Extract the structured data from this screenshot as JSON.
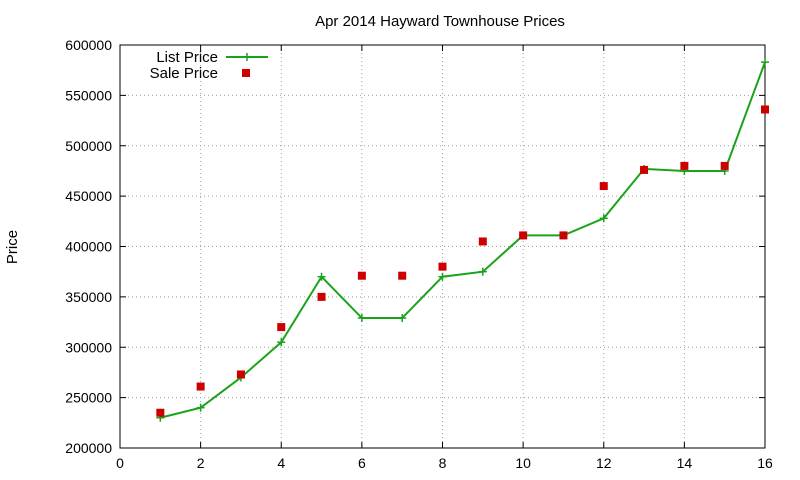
{
  "chart_data": {
    "type": "line",
    "title": "Apr 2014 Hayward Townhouse Prices",
    "xlabel": "",
    "ylabel": "Price",
    "xlim": [
      0,
      16
    ],
    "ylim": [
      200000,
      600000
    ],
    "xticks": [
      0,
      2,
      4,
      6,
      8,
      10,
      12,
      14,
      16
    ],
    "yticks": [
      200000,
      250000,
      300000,
      350000,
      400000,
      450000,
      500000,
      550000,
      600000
    ],
    "grid": true,
    "legend_position": "top-left",
    "series": [
      {
        "name": "List Price",
        "style": "line-with-plus-markers",
        "color": "#1aa31a",
        "x": [
          1,
          2,
          3,
          4,
          5,
          6,
          7,
          8,
          9,
          10,
          11,
          12,
          13,
          14,
          15,
          16
        ],
        "y": [
          230000,
          240000,
          270000,
          305000,
          370000,
          329000,
          329000,
          370000,
          375000,
          411000,
          411000,
          428000,
          477000,
          475000,
          475000,
          583000
        ]
      },
      {
        "name": "Sale Price",
        "style": "square-markers",
        "color": "#cc0000",
        "x": [
          1,
          2,
          3,
          4,
          5,
          6,
          7,
          8,
          9,
          10,
          11,
          12,
          13,
          14,
          15,
          16
        ],
        "y": [
          235000,
          261000,
          273000,
          320000,
          350000,
          371000,
          371000,
          380000,
          405000,
          411000,
          411000,
          460000,
          476000,
          480000,
          480000,
          536000
        ]
      }
    ]
  }
}
